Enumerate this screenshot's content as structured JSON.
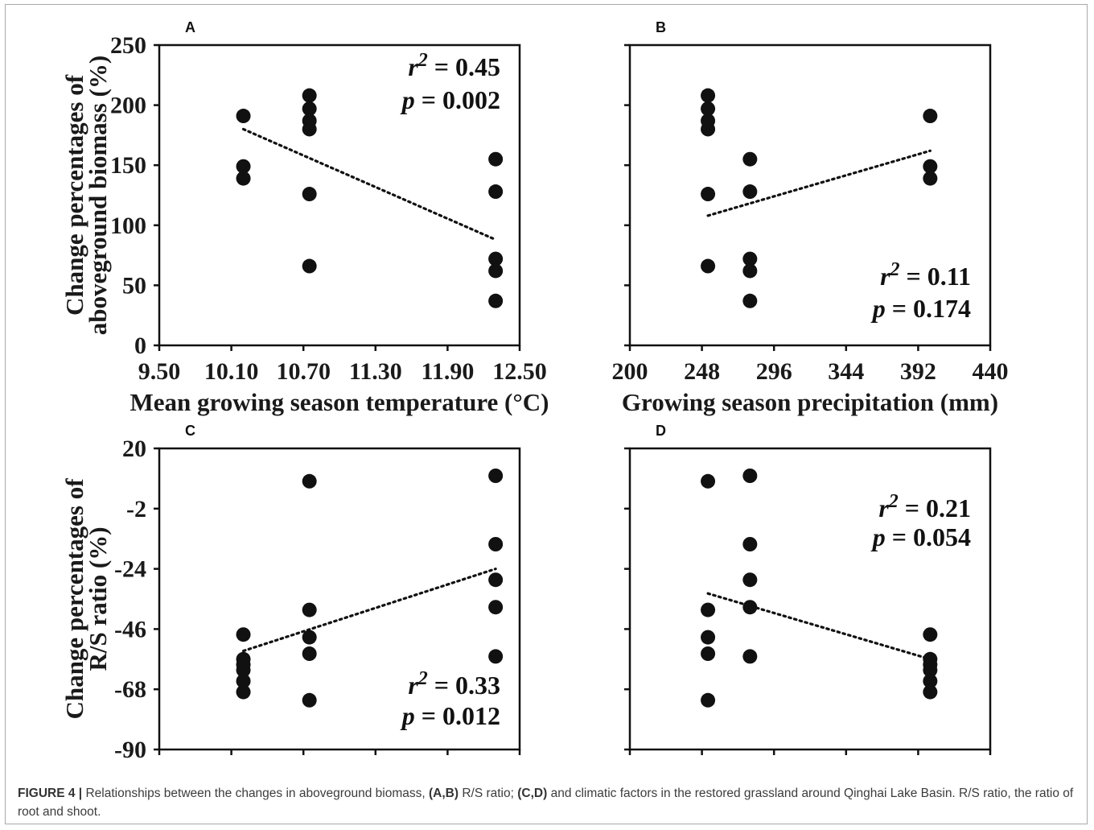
{
  "chart_data": [
    {
      "panel": "A",
      "type": "scatter",
      "xlabel": "Mean growing season temperature (°C)",
      "ylabel_lines": [
        "Change percentages of",
        "aboveground biomass (%)"
      ],
      "xlim": [
        9.5,
        12.5
      ],
      "ylim": [
        0,
        250
      ],
      "xticks": [
        "9.50",
        "10.10",
        "10.70",
        "11.30",
        "11.90",
        "12.50"
      ],
      "yticks": [
        "0",
        "50",
        "100",
        "150",
        "200",
        "250"
      ],
      "points": [
        {
          "x": 10.2,
          "y": 191
        },
        {
          "x": 10.2,
          "y": 149
        },
        {
          "x": 10.2,
          "y": 139
        },
        {
          "x": 10.75,
          "y": 208
        },
        {
          "x": 10.75,
          "y": 197
        },
        {
          "x": 10.75,
          "y": 187
        },
        {
          "x": 10.75,
          "y": 180
        },
        {
          "x": 10.75,
          "y": 126
        },
        {
          "x": 10.75,
          "y": 66
        },
        {
          "x": 12.3,
          "y": 155
        },
        {
          "x": 12.3,
          "y": 128
        },
        {
          "x": 12.3,
          "y": 72
        },
        {
          "x": 12.3,
          "y": 62
        },
        {
          "x": 12.3,
          "y": 37
        }
      ],
      "trend": {
        "x": [
          10.2,
          12.3
        ],
        "y": [
          180,
          88
        ]
      },
      "r2": "= 0.45",
      "p": "= 0.002",
      "stat_pos": "top-right"
    },
    {
      "panel": "B",
      "type": "scatter",
      "xlabel": "Growing season precipitation (mm)",
      "xlim": [
        200,
        440
      ],
      "ylim": [
        0,
        250
      ],
      "xticks": [
        "200",
        "248",
        "296",
        "344",
        "392",
        "440"
      ],
      "points": [
        {
          "x": 252,
          "y": 208
        },
        {
          "x": 252,
          "y": 197
        },
        {
          "x": 252,
          "y": 187
        },
        {
          "x": 252,
          "y": 180
        },
        {
          "x": 252,
          "y": 126
        },
        {
          "x": 252,
          "y": 66
        },
        {
          "x": 280,
          "y": 155
        },
        {
          "x": 280,
          "y": 128
        },
        {
          "x": 280,
          "y": 72
        },
        {
          "x": 280,
          "y": 62
        },
        {
          "x": 280,
          "y": 37
        },
        {
          "x": 400,
          "y": 191
        },
        {
          "x": 400,
          "y": 149
        },
        {
          "x": 400,
          "y": 139
        }
      ],
      "trend": {
        "x": [
          252,
          400
        ],
        "y": [
          108,
          162
        ]
      },
      "r2": "= 0.11",
      "p": "= 0.174",
      "stat_pos": "bottom-right"
    },
    {
      "panel": "C",
      "type": "scatter",
      "ylabel_lines": [
        "Change percentages of",
        "R/S ratio (%)"
      ],
      "xlim": [
        9.5,
        12.5
      ],
      "ylim": [
        -90,
        20
      ],
      "yticks": [
        "-90",
        "-68",
        "-46",
        "-24",
        "-2",
        "20"
      ],
      "points": [
        {
          "x": 10.2,
          "y": -48
        },
        {
          "x": 10.2,
          "y": -57
        },
        {
          "x": 10.2,
          "y": -59
        },
        {
          "x": 10.2,
          "y": -61
        },
        {
          "x": 10.2,
          "y": -65
        },
        {
          "x": 10.2,
          "y": -69
        },
        {
          "x": 10.75,
          "y": 8
        },
        {
          "x": 10.75,
          "y": -39
        },
        {
          "x": 10.75,
          "y": -49
        },
        {
          "x": 10.75,
          "y": -55
        },
        {
          "x": 10.75,
          "y": -72
        },
        {
          "x": 12.3,
          "y": 10
        },
        {
          "x": 12.3,
          "y": -15
        },
        {
          "x": 12.3,
          "y": -28
        },
        {
          "x": 12.3,
          "y": -38
        },
        {
          "x": 12.3,
          "y": -56
        }
      ],
      "trend": {
        "x": [
          10.2,
          12.3
        ],
        "y": [
          -54,
          -24
        ]
      },
      "r2": "= 0.33",
      "p": "= 0.012",
      "stat_pos": "bottom-right"
    },
    {
      "panel": "D",
      "type": "scatter",
      "xlim": [
        200,
        440
      ],
      "ylim": [
        -90,
        20
      ],
      "points": [
        {
          "x": 252,
          "y": 8
        },
        {
          "x": 252,
          "y": -39
        },
        {
          "x": 252,
          "y": -49
        },
        {
          "x": 252,
          "y": -55
        },
        {
          "x": 252,
          "y": -72
        },
        {
          "x": 280,
          "y": 10
        },
        {
          "x": 280,
          "y": -15
        },
        {
          "x": 280,
          "y": -28
        },
        {
          "x": 280,
          "y": -38
        },
        {
          "x": 280,
          "y": -56
        },
        {
          "x": 400,
          "y": -48
        },
        {
          "x": 400,
          "y": -57
        },
        {
          "x": 400,
          "y": -59
        },
        {
          "x": 400,
          "y": -61
        },
        {
          "x": 400,
          "y": -65
        },
        {
          "x": 400,
          "y": -69
        }
      ],
      "trend": {
        "x": [
          252,
          400
        ],
        "y": [
          -33,
          -57
        ]
      },
      "r2": "= 0.21",
      "p": "= 0.054",
      "stat_pos": "top-right"
    }
  ],
  "caption": {
    "label": "FIGURE 4 |",
    "t1": " Relationships between the changes in aboveground biomass, ",
    "b1": "(A,B)",
    "t2": " R/S ratio; ",
    "b2": "(C,D)",
    "t3": " and climatic factors in the restored grassland around Qinghai Lake Basin. R/S ratio, the ratio of root and shoot."
  }
}
